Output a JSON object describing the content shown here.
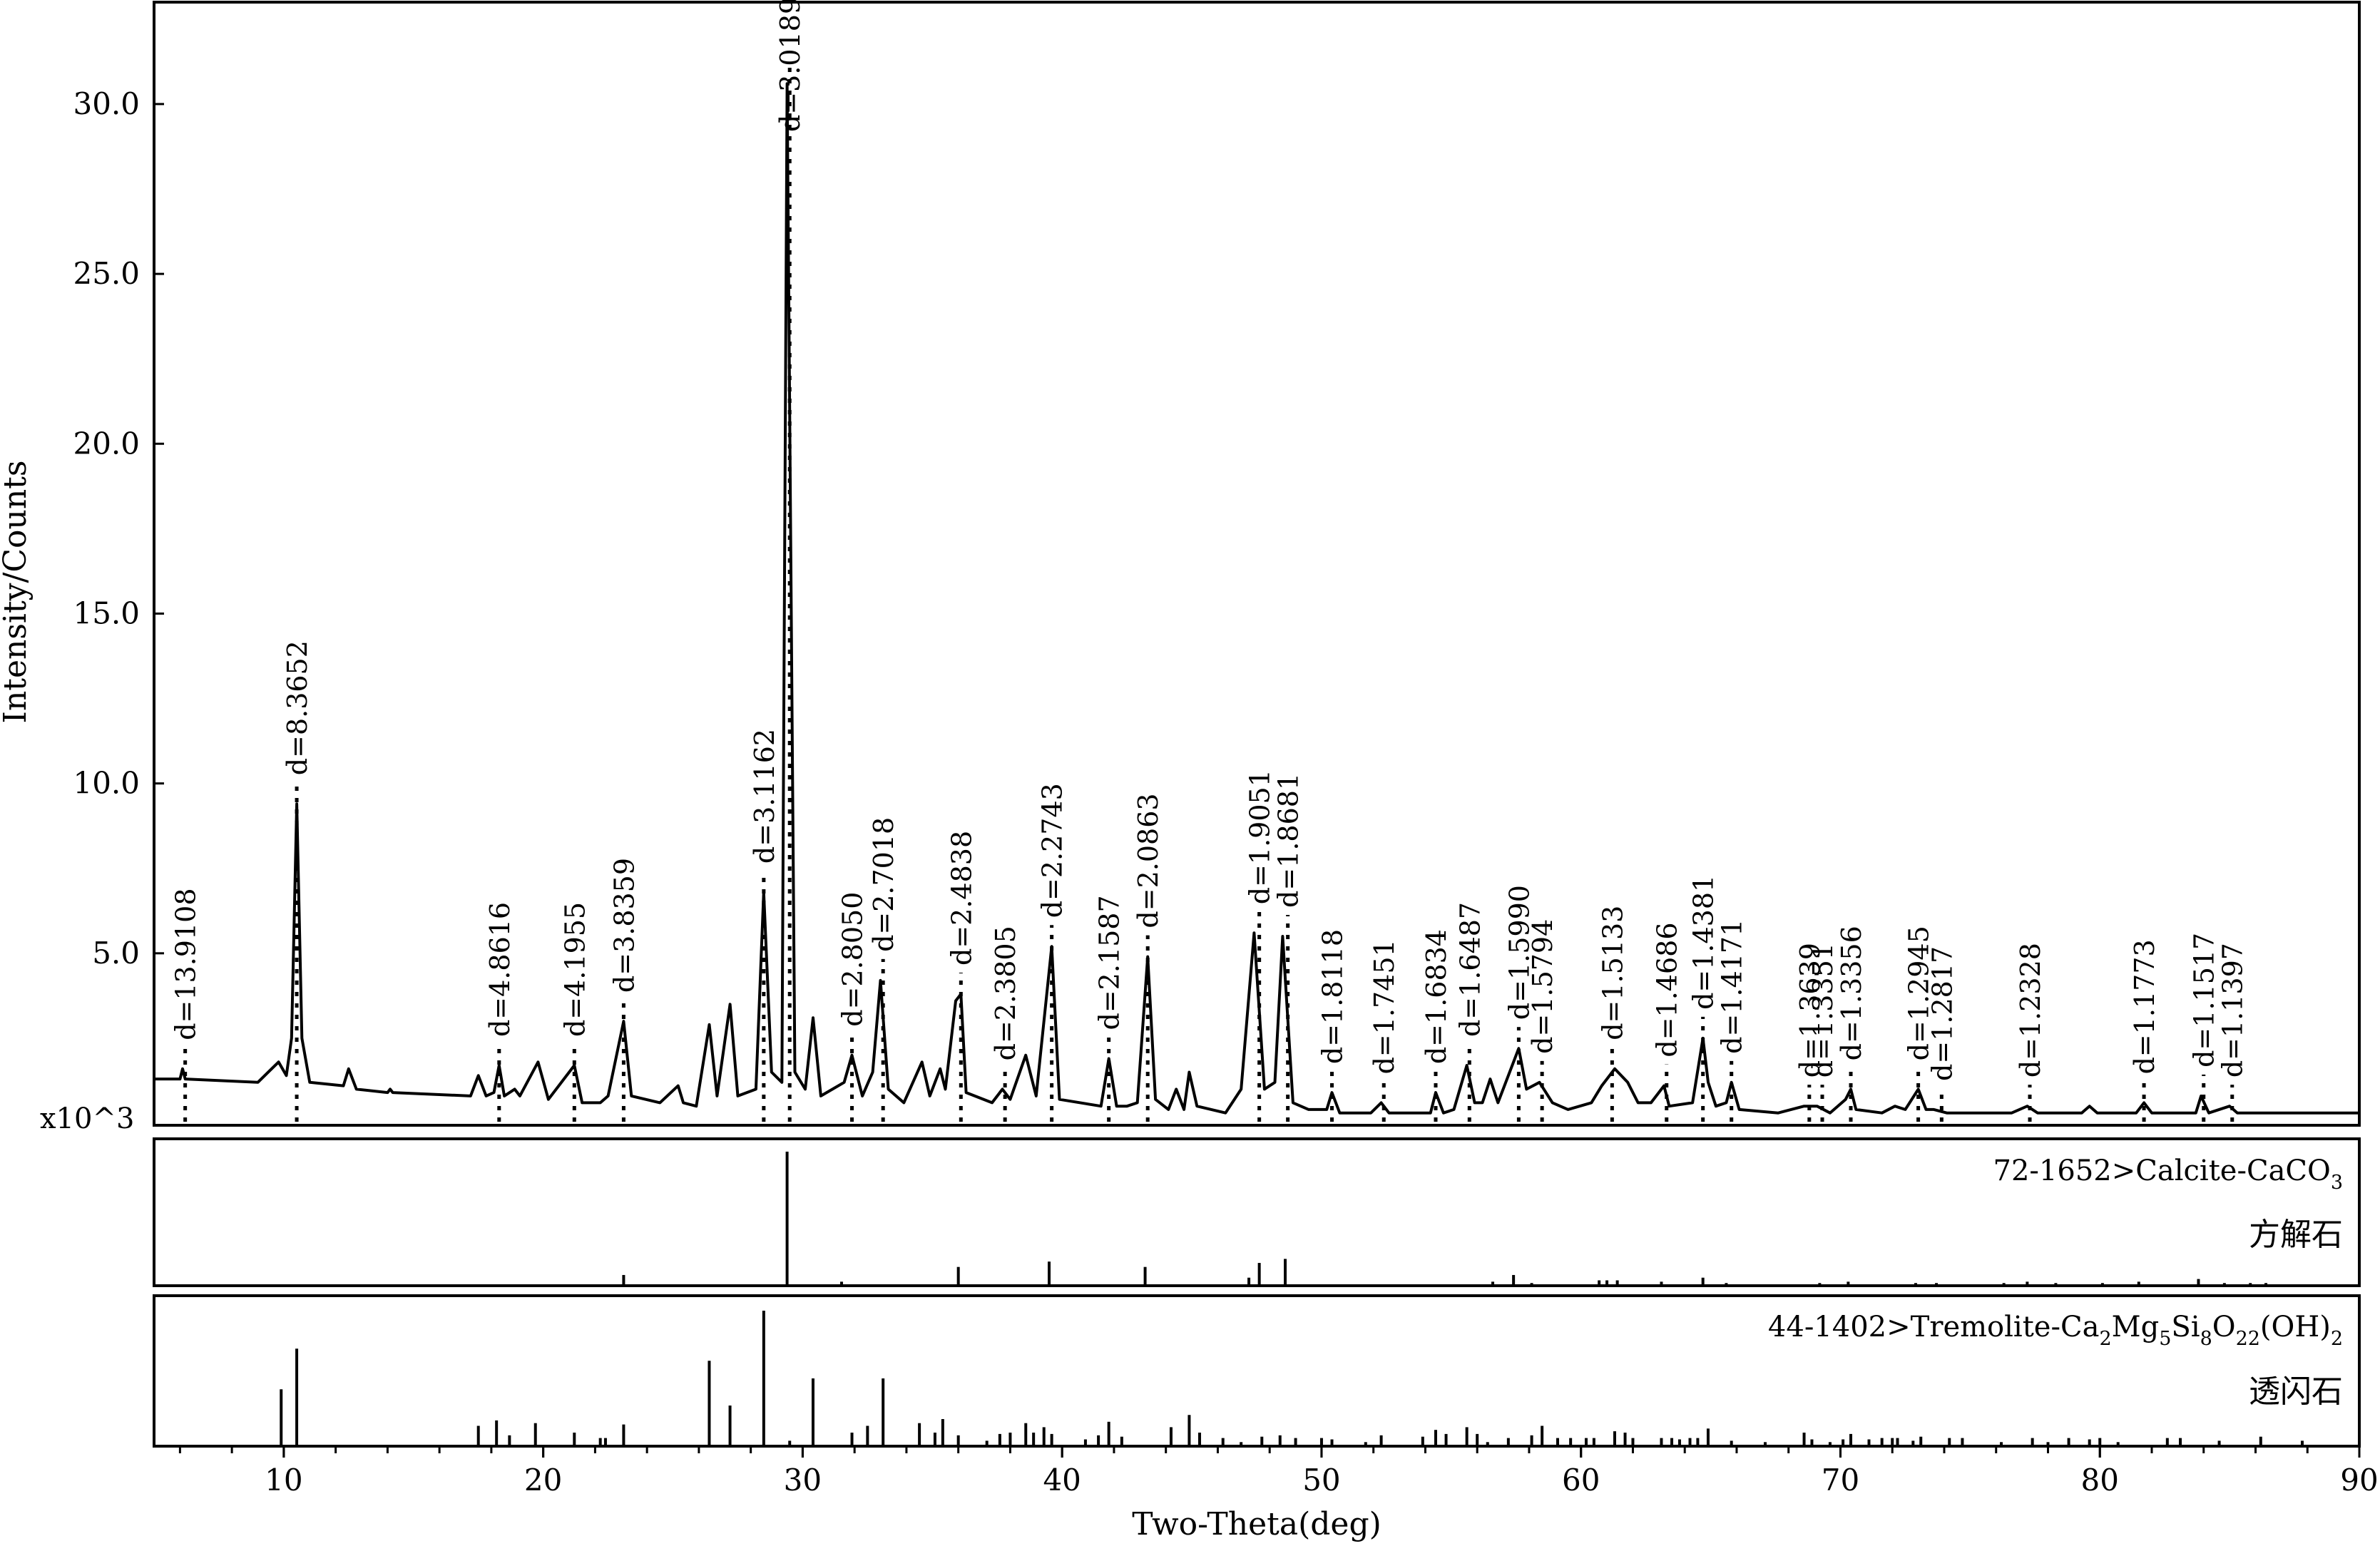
{
  "chart_data": {
    "type": "line",
    "xlabel": "Two-Theta(deg)",
    "ylabel": "Intensity/Counts",
    "y_multiplier": "x10^3",
    "xlim": [
      5,
      90
    ],
    "ylim": [
      0,
      33
    ],
    "x_ticks": [
      10,
      20,
      30,
      40,
      50,
      60,
      70,
      80,
      90
    ],
    "y_ticks": [
      5.0,
      10.0,
      15.0,
      20.0,
      25.0,
      30.0
    ],
    "pattern": [
      [
        5,
        1.3
      ],
      [
        6,
        1.3
      ],
      [
        6.1,
        1.6
      ],
      [
        6.2,
        1.3
      ],
      [
        9,
        1.2
      ],
      [
        9.8,
        1.8
      ],
      [
        10.1,
        1.4
      ],
      [
        10.3,
        2.5
      ],
      [
        10.5,
        9.4
      ],
      [
        10.7,
        2.5
      ],
      [
        11,
        1.2
      ],
      [
        12.3,
        1.1
      ],
      [
        12.5,
        1.6
      ],
      [
        12.8,
        1.0
      ],
      [
        14,
        0.9
      ],
      [
        14.1,
        1.0
      ],
      [
        14.2,
        0.9
      ],
      [
        17.2,
        0.8
      ],
      [
        17.5,
        1.4
      ],
      [
        17.8,
        0.8
      ],
      [
        18.1,
        0.9
      ],
      [
        18.3,
        1.7
      ],
      [
        18.5,
        0.8
      ],
      [
        18.9,
        1.0
      ],
      [
        19.1,
        0.8
      ],
      [
        19.8,
        1.8
      ],
      [
        20.2,
        0.7
      ],
      [
        21.2,
        1.7
      ],
      [
        21.5,
        0.6
      ],
      [
        22.2,
        0.6
      ],
      [
        22.5,
        0.8
      ],
      [
        23.1,
        3.0
      ],
      [
        23.4,
        0.8
      ],
      [
        24.5,
        0.6
      ],
      [
        25.2,
        1.1
      ],
      [
        25.4,
        0.6
      ],
      [
        25.9,
        0.5
      ],
      [
        26.4,
        2.9
      ],
      [
        26.7,
        0.8
      ],
      [
        27.2,
        3.5
      ],
      [
        27.5,
        0.8
      ],
      [
        28.2,
        1.0
      ],
      [
        28.5,
        6.8
      ],
      [
        28.8,
        1.5
      ],
      [
        29.2,
        1.2
      ],
      [
        29.4,
        30.6
      ],
      [
        29.7,
        1.5
      ],
      [
        30.1,
        1.0
      ],
      [
        30.4,
        3.1
      ],
      [
        30.7,
        0.8
      ],
      [
        31.6,
        1.2
      ],
      [
        31.9,
        2.0
      ],
      [
        32.3,
        0.8
      ],
      [
        32.7,
        1.5
      ],
      [
        33.0,
        4.2
      ],
      [
        33.3,
        1.0
      ],
      [
        33.9,
        0.6
      ],
      [
        34.6,
        1.8
      ],
      [
        34.9,
        0.8
      ],
      [
        35.3,
        1.6
      ],
      [
        35.5,
        1.0
      ],
      [
        35.9,
        3.6
      ],
      [
        36.1,
        3.8
      ],
      [
        36.3,
        0.9
      ],
      [
        37.3,
        0.6
      ],
      [
        37.7,
        1.0
      ],
      [
        38.0,
        0.7
      ],
      [
        38.6,
        2.0
      ],
      [
        39.0,
        0.8
      ],
      [
        39.6,
        5.2
      ],
      [
        39.9,
        0.7
      ],
      [
        41.5,
        0.5
      ],
      [
        41.8,
        1.9
      ],
      [
        42.1,
        0.5
      ],
      [
        42.5,
        0.5
      ],
      [
        42.9,
        0.6
      ],
      [
        43.3,
        4.9
      ],
      [
        43.6,
        0.7
      ],
      [
        44.1,
        0.4
      ],
      [
        44.4,
        1.0
      ],
      [
        44.7,
        0.4
      ],
      [
        44.9,
        1.5
      ],
      [
        45.2,
        0.5
      ],
      [
        46.3,
        0.3
      ],
      [
        46.9,
        1.0
      ],
      [
        47.4,
        5.6
      ],
      [
        47.8,
        1.0
      ],
      [
        48.2,
        1.2
      ],
      [
        48.5,
        5.5
      ],
      [
        48.9,
        0.6
      ],
      [
        49.5,
        0.4
      ],
      [
        50.2,
        0.4
      ],
      [
        50.4,
        0.9
      ],
      [
        50.7,
        0.3
      ],
      [
        51.9,
        0.3
      ],
      [
        52.3,
        0.6
      ],
      [
        52.6,
        0.3
      ],
      [
        53.6,
        0.3
      ],
      [
        54.2,
        0.3
      ],
      [
        54.4,
        0.9
      ],
      [
        54.7,
        0.3
      ],
      [
        55.1,
        0.4
      ],
      [
        55.6,
        1.7
      ],
      [
        55.9,
        0.6
      ],
      [
        56.2,
        0.6
      ],
      [
        56.5,
        1.3
      ],
      [
        56.8,
        0.6
      ],
      [
        57.6,
        2.2
      ],
      [
        57.9,
        1.0
      ],
      [
        58.4,
        1.2
      ],
      [
        58.9,
        0.6
      ],
      [
        59.5,
        0.4
      ],
      [
        60.4,
        0.6
      ],
      [
        60.8,
        1.1
      ],
      [
        61.3,
        1.6
      ],
      [
        61.8,
        1.2
      ],
      [
        62.2,
        0.6
      ],
      [
        62.7,
        0.6
      ],
      [
        63.2,
        1.1
      ],
      [
        63.4,
        0.5
      ],
      [
        64.3,
        0.6
      ],
      [
        64.7,
        2.5
      ],
      [
        64.9,
        1.2
      ],
      [
        65.2,
        0.5
      ],
      [
        65.6,
        0.6
      ],
      [
        65.8,
        1.2
      ],
      [
        66.1,
        0.4
      ],
      [
        67.6,
        0.3
      ],
      [
        68.6,
        0.5
      ],
      [
        69.1,
        0.5
      ],
      [
        69.6,
        0.3
      ],
      [
        70.2,
        0.7
      ],
      [
        70.4,
        1.0
      ],
      [
        70.6,
        0.4
      ],
      [
        71.6,
        0.3
      ],
      [
        72.1,
        0.5
      ],
      [
        72.5,
        0.4
      ],
      [
        73.0,
        1.0
      ],
      [
        73.3,
        0.4
      ],
      [
        73.6,
        0.4
      ],
      [
        74.1,
        0.3
      ],
      [
        76.6,
        0.3
      ],
      [
        77.2,
        0.5
      ],
      [
        77.6,
        0.3
      ],
      [
        79.3,
        0.3
      ],
      [
        79.6,
        0.5
      ],
      [
        79.9,
        0.3
      ],
      [
        81.4,
        0.3
      ],
      [
        81.7,
        0.6
      ],
      [
        82.0,
        0.3
      ],
      [
        83.7,
        0.3
      ],
      [
        83.9,
        0.8
      ],
      [
        84.2,
        0.3
      ],
      [
        85.0,
        0.5
      ],
      [
        85.3,
        0.3
      ],
      [
        90,
        0.3
      ]
    ],
    "peak_labels": [
      {
        "x": 6.2,
        "y": 1.6,
        "label": "d=13.9108"
      },
      {
        "x": 10.5,
        "y": 9.4,
        "label": "d=8.3652"
      },
      {
        "x": 18.3,
        "y": 1.7,
        "label": "d=4.8616"
      },
      {
        "x": 21.2,
        "y": 1.7,
        "label": "d=4.1955"
      },
      {
        "x": 23.1,
        "y": 3.0,
        "label": "d=3.8359"
      },
      {
        "x": 28.5,
        "y": 6.8,
        "label": "d=3.1162"
      },
      {
        "x": 29.5,
        "y": 30.6,
        "label": "d=3.0189"
      },
      {
        "x": 31.9,
        "y": 2.0,
        "label": "d=2.8050"
      },
      {
        "x": 33.1,
        "y": 4.2,
        "label": "d=2.7018"
      },
      {
        "x": 36.1,
        "y": 3.8,
        "label": "d=2.4838"
      },
      {
        "x": 37.8,
        "y": 1.0,
        "label": "d=2.3805"
      },
      {
        "x": 39.6,
        "y": 5.2,
        "label": "d=2.2743"
      },
      {
        "x": 41.8,
        "y": 1.9,
        "label": "d=2.1587"
      },
      {
        "x": 43.3,
        "y": 4.9,
        "label": "d=2.0863"
      },
      {
        "x": 47.6,
        "y": 5.6,
        "label": "d=1.9051"
      },
      {
        "x": 48.7,
        "y": 5.5,
        "label": "d=1.8681"
      },
      {
        "x": 50.4,
        "y": 0.9,
        "label": "d=1.8118"
      },
      {
        "x": 52.4,
        "y": 0.6,
        "label": "d=1.7451"
      },
      {
        "x": 54.4,
        "y": 0.9,
        "label": "d=1.6834"
      },
      {
        "x": 55.7,
        "y": 1.7,
        "label": "d=1.6487"
      },
      {
        "x": 57.6,
        "y": 2.2,
        "label": "d=1.5990"
      },
      {
        "x": 58.5,
        "y": 1.2,
        "label": "d=1.5794"
      },
      {
        "x": 61.2,
        "y": 1.6,
        "label": "d=1.5133"
      },
      {
        "x": 63.3,
        "y": 1.1,
        "label": "d=1.4686"
      },
      {
        "x": 64.7,
        "y": 2.5,
        "label": "d=1.4381"
      },
      {
        "x": 65.8,
        "y": 1.2,
        "label": "d=1.4171"
      },
      {
        "x": 68.8,
        "y": 0.5,
        "label": "d=1.3639"
      },
      {
        "x": 69.3,
        "y": 0.5,
        "label": "d=1.3351"
      },
      {
        "x": 70.4,
        "y": 1.0,
        "label": "d=1.3356"
      },
      {
        "x": 73.0,
        "y": 1.0,
        "label": "d=1.2945"
      },
      {
        "x": 73.9,
        "y": 0.4,
        "label": "d=1.2817"
      },
      {
        "x": 77.3,
        "y": 0.5,
        "label": "d=1.2328"
      },
      {
        "x": 81.7,
        "y": 0.6,
        "label": "d=1.1773"
      },
      {
        "x": 84.0,
        "y": 0.8,
        "label": "d=1.1517"
      },
      {
        "x": 85.1,
        "y": 0.5,
        "label": "d=1.1397"
      }
    ],
    "reference_patterns": [
      {
        "id_text": "72-1652>Calcite-CaCO",
        "id_subscript": "3",
        "name_cn": "方解石",
        "sticks": [
          [
            23.1,
            0.08
          ],
          [
            29.4,
            1.0
          ],
          [
            31.5,
            0.03
          ],
          [
            36.0,
            0.14
          ],
          [
            39.5,
            0.18
          ],
          [
            43.2,
            0.14
          ],
          [
            47.2,
            0.06
          ],
          [
            47.6,
            0.17
          ],
          [
            48.6,
            0.2
          ],
          [
            56.6,
            0.03
          ],
          [
            57.4,
            0.08
          ],
          [
            58.1,
            0.02
          ],
          [
            60.7,
            0.04
          ],
          [
            61.0,
            0.04
          ],
          [
            61.4,
            0.04
          ],
          [
            63.1,
            0.03
          ],
          [
            64.7,
            0.06
          ],
          [
            65.6,
            0.02
          ],
          [
            69.2,
            0.02
          ],
          [
            70.3,
            0.03
          ],
          [
            72.9,
            0.02
          ],
          [
            73.7,
            0.02
          ],
          [
            76.3,
            0.02
          ],
          [
            77.2,
            0.03
          ],
          [
            78.3,
            0.02
          ],
          [
            80.1,
            0.02
          ],
          [
            81.5,
            0.03
          ],
          [
            83.8,
            0.05
          ],
          [
            84.8,
            0.02
          ],
          [
            85.8,
            0.02
          ],
          [
            86.4,
            0.02
          ]
        ]
      },
      {
        "id_text": "44-1402>Tremolite-Ca",
        "formula_parts": [
          [
            "Ca",
            "2"
          ],
          [
            "Mg",
            "5"
          ],
          [
            "Si",
            "8"
          ],
          [
            "O",
            "22"
          ],
          [
            "(OH)",
            "2"
          ]
        ],
        "name_cn": "透闪石",
        "sticks": [
          [
            9.9,
            0.42
          ],
          [
            10.5,
            0.72
          ],
          [
            17.5,
            0.15
          ],
          [
            18.2,
            0.19
          ],
          [
            18.7,
            0.08
          ],
          [
            19.7,
            0.17
          ],
          [
            21.2,
            0.1
          ],
          [
            22.2,
            0.06
          ],
          [
            22.4,
            0.06
          ],
          [
            23.1,
            0.16
          ],
          [
            26.4,
            0.63
          ],
          [
            27.2,
            0.3
          ],
          [
            28.5,
            1.0
          ],
          [
            29.5,
            0.04
          ],
          [
            30.4,
            0.5
          ],
          [
            31.9,
            0.1
          ],
          [
            32.5,
            0.15
          ],
          [
            33.1,
            0.5
          ],
          [
            34.5,
            0.17
          ],
          [
            35.1,
            0.1
          ],
          [
            35.4,
            0.2
          ],
          [
            36.0,
            0.08
          ],
          [
            37.1,
            0.04
          ],
          [
            37.6,
            0.09
          ],
          [
            38.0,
            0.1
          ],
          [
            38.6,
            0.17
          ],
          [
            38.9,
            0.1
          ],
          [
            39.3,
            0.14
          ],
          [
            39.6,
            0.09
          ],
          [
            40.9,
            0.05
          ],
          [
            41.4,
            0.08
          ],
          [
            41.8,
            0.18
          ],
          [
            42.3,
            0.07
          ],
          [
            44.2,
            0.14
          ],
          [
            44.9,
            0.23
          ],
          [
            45.3,
            0.1
          ],
          [
            46.2,
            0.06
          ],
          [
            46.9,
            0.03
          ],
          [
            47.7,
            0.07
          ],
          [
            48.4,
            0.08
          ],
          [
            49.0,
            0.06
          ],
          [
            50.0,
            0.06
          ],
          [
            50.4,
            0.05
          ],
          [
            51.7,
            0.03
          ],
          [
            52.3,
            0.08
          ],
          [
            53.9,
            0.07
          ],
          [
            54.4,
            0.12
          ],
          [
            54.8,
            0.09
          ],
          [
            55.6,
            0.14
          ],
          [
            56.0,
            0.09
          ],
          [
            56.4,
            0.03
          ],
          [
            57.2,
            0.06
          ],
          [
            58.1,
            0.08
          ],
          [
            58.5,
            0.15
          ],
          [
            59.1,
            0.06
          ],
          [
            59.6,
            0.06
          ],
          [
            60.2,
            0.06
          ],
          [
            60.5,
            0.06
          ],
          [
            61.3,
            0.11
          ],
          [
            61.7,
            0.1
          ],
          [
            62.0,
            0.06
          ],
          [
            63.1,
            0.06
          ],
          [
            63.5,
            0.06
          ],
          [
            63.8,
            0.05
          ],
          [
            64.2,
            0.06
          ],
          [
            64.5,
            0.06
          ],
          [
            64.9,
            0.13
          ],
          [
            65.8,
            0.04
          ],
          [
            67.1,
            0.03
          ],
          [
            68.6,
            0.1
          ],
          [
            68.9,
            0.05
          ],
          [
            69.6,
            0.03
          ],
          [
            70.1,
            0.05
          ],
          [
            70.4,
            0.09
          ],
          [
            71.1,
            0.05
          ],
          [
            71.6,
            0.06
          ],
          [
            72.0,
            0.06
          ],
          [
            72.2,
            0.06
          ],
          [
            72.8,
            0.04
          ],
          [
            73.1,
            0.07
          ],
          [
            74.2,
            0.06
          ],
          [
            74.7,
            0.06
          ],
          [
            76.2,
            0.03
          ],
          [
            77.4,
            0.06
          ],
          [
            78.0,
            0.03
          ],
          [
            78.8,
            0.06
          ],
          [
            79.6,
            0.05
          ],
          [
            80.0,
            0.06
          ],
          [
            80.7,
            0.03
          ],
          [
            82.6,
            0.06
          ],
          [
            83.1,
            0.06
          ],
          [
            84.6,
            0.04
          ],
          [
            86.2,
            0.07
          ],
          [
            87.8,
            0.04
          ]
        ]
      }
    ]
  }
}
